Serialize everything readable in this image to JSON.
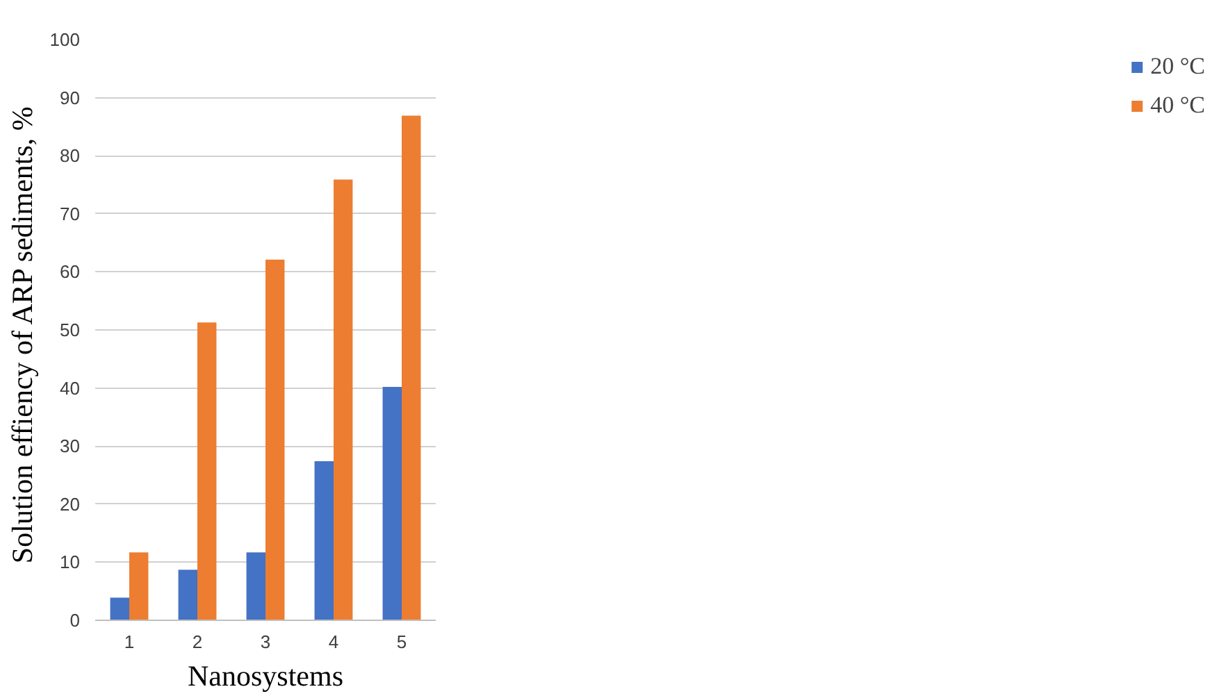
{
  "chart_data": {
    "type": "bar",
    "xlabel": "Nanosystems",
    "ylabel": "Solution effiency of  ARP sediments, %",
    "categories": [
      "1",
      "2",
      "3",
      "4",
      "5"
    ],
    "series": [
      {
        "name": "20 °C",
        "color": "#4472c4",
        "values": [
          3.9,
          8.7,
          11.7,
          27.4,
          40.2
        ]
      },
      {
        "name": "40 °C",
        "color": "#ed7d31",
        "values": [
          11.7,
          51.3,
          62.1,
          75.9,
          86.9
        ]
      }
    ],
    "ylim": [
      0,
      100
    ],
    "yticks": [
      0,
      10,
      20,
      30,
      40,
      50,
      60,
      70,
      80,
      90,
      100
    ],
    "grid": "y",
    "legend": "right"
  }
}
